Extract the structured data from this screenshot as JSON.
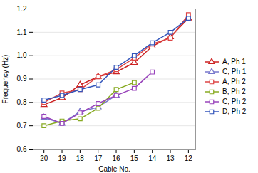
{
  "chart_data": {
    "type": "line",
    "xlabel": "Cable No.",
    "ylabel": "Frequency (Hz)",
    "x": [
      20,
      19,
      18,
      17,
      16,
      15,
      14,
      13,
      12
    ],
    "series": [
      {
        "name": "A, Ph 1",
        "color": "#cc2222",
        "marker": "triangle",
        "values": [
          0.79,
          0.82,
          0.875,
          0.91,
          0.93,
          0.97,
          1.04,
          1.08,
          1.16
        ]
      },
      {
        "name": "C, Ph 1",
        "color": "#7777cc",
        "marker": "triangle",
        "values": [
          0.735,
          0.71,
          0.76,
          0.78,
          0.83,
          null,
          null,
          null,
          null
        ]
      },
      {
        "name": "A, Ph 2",
        "color": "#dd4444",
        "marker": "square",
        "values": [
          0.8,
          0.84,
          0.855,
          0.91,
          0.94,
          0.99,
          1.05,
          1.075,
          1.175
        ]
      },
      {
        "name": "B, Ph 2",
        "color": "#88aa22",
        "marker": "square",
        "values": [
          0.7,
          0.72,
          0.73,
          0.775,
          0.855,
          0.885,
          null,
          null,
          null
        ]
      },
      {
        "name": "C, Ph 2",
        "color": "#9944bb",
        "marker": "square",
        "values": [
          0.74,
          0.71,
          0.755,
          0.795,
          0.83,
          0.86,
          0.93,
          null,
          null
        ]
      },
      {
        "name": "D, Ph 2",
        "color": "#3355bb",
        "marker": "square",
        "values": [
          0.81,
          0.83,
          0.855,
          0.875,
          0.95,
          1.0,
          1.055,
          1.1,
          1.16
        ]
      }
    ],
    "xlim": [
      20.6,
      11.6
    ],
    "xticks": [
      20,
      19,
      18,
      17,
      16,
      15,
      14,
      13,
      12
    ],
    "ylim": [
      0.6,
      1.2
    ],
    "yticks": [
      0.6,
      0.7,
      0.8,
      0.9,
      {
        "value": 1.0,
        "label": "1.0"
      },
      1.1,
      1.2
    ],
    "grid": "y",
    "legend": "right"
  }
}
